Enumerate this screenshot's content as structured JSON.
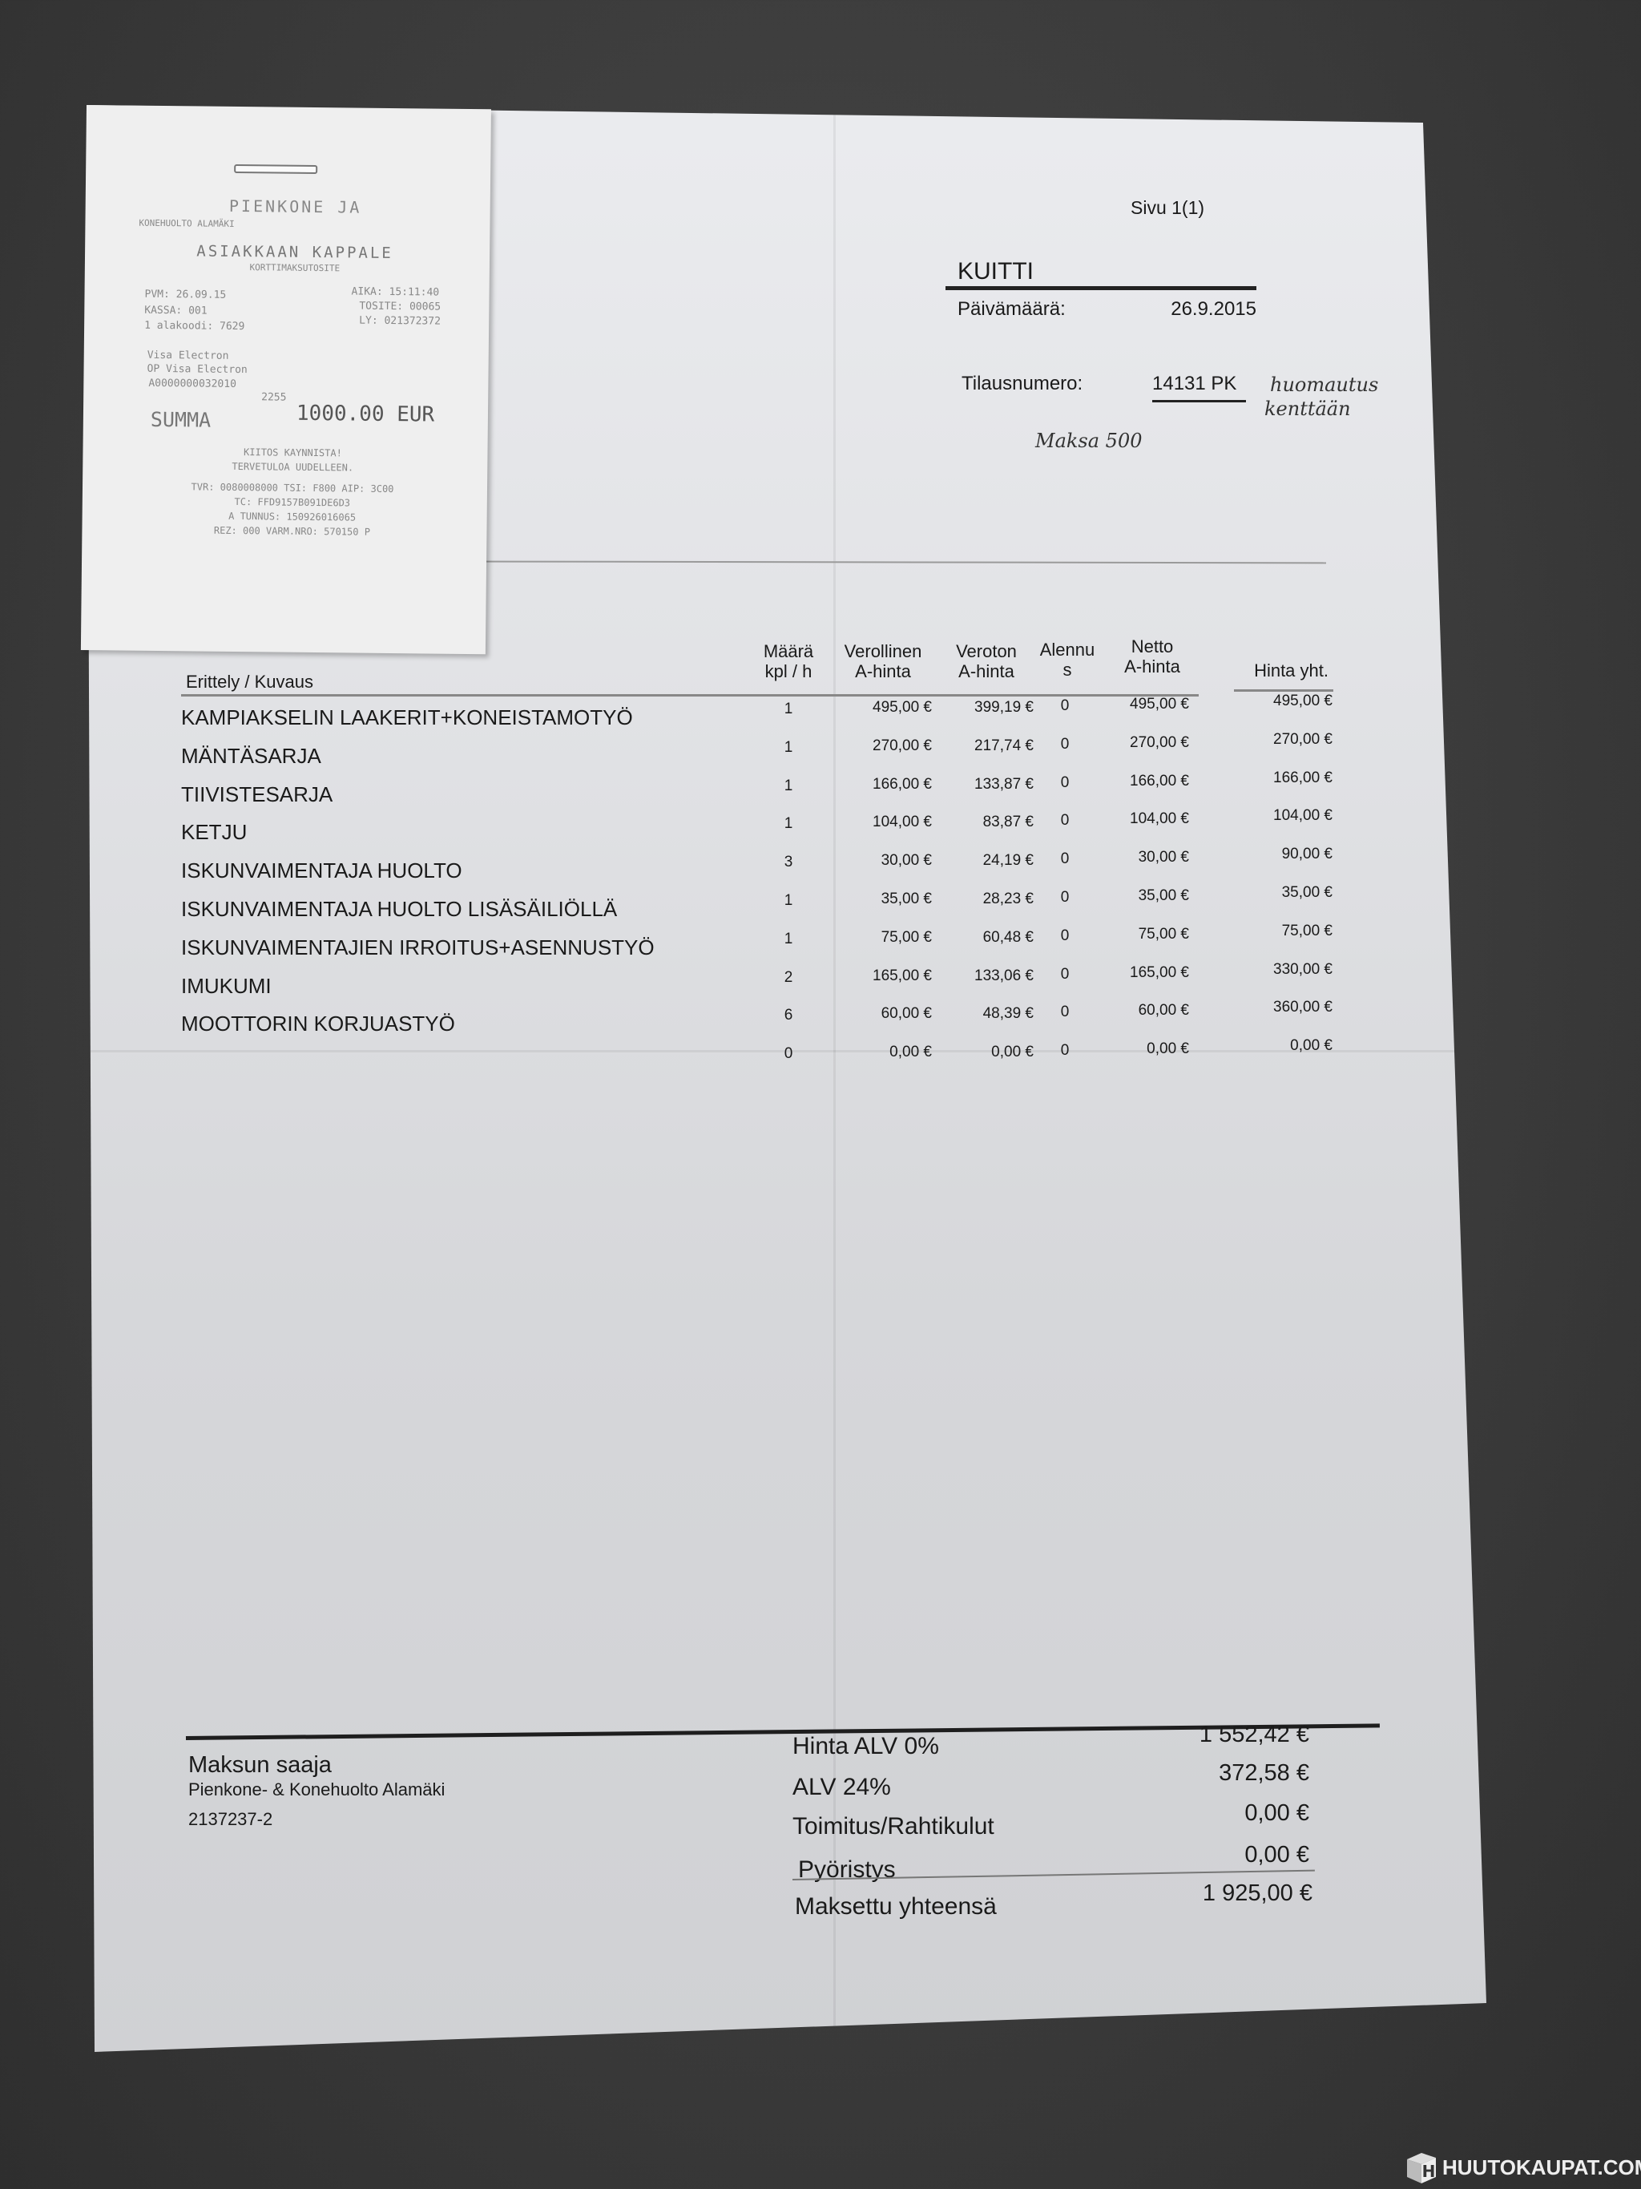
{
  "receipt": {
    "merchant_line1": "PIENKONE JA",
    "merchant_line2": "KONEHUOLTO ALAMÄKI",
    "copy_title": "ASIAKKAAN KAPPALE",
    "receipt_type": "KORTTIMAKSUTOSITE",
    "pvm": "PVM: 26.09.15",
    "kassa": "KASSA: 001",
    "alakoodi": "1 alakoodi: 7629",
    "aika": "AIKA: 15:11:40",
    "tosite": "TOSITE: 00065",
    "ly": "LY: 021372372",
    "card1": "Visa Electron",
    "card2": "OP Visa Electron",
    "aid": "A0000000032010",
    "card_last": "2255",
    "summa_label": "SUMMA",
    "summa_value": "1000.00 EUR",
    "thanks1": "KIITOS KAYNNISTA!",
    "thanks2": "TERVETULOA UUDELLEEN.",
    "tvr": "TVR: 0080008000 TSI: F800 AIP: 3C00",
    "tc": "TC: FFD9157B091DE6D3",
    "tunnus": "A TUNNUS: 150926016065",
    "rez": "REZ: 000 VARM.NRO: 570150 P"
  },
  "document": {
    "page": "Sivu 1(1)",
    "title": "KUITTI",
    "date_label": "Päivämäärä:",
    "date_value": "26.9.2015",
    "order_label": "Tilausnumero:",
    "order_value": "14131 PK",
    "handwritten_note1": "huomautus",
    "handwritten_note2": "kenttään",
    "handwritten_pay": "Maksa 500"
  },
  "table": {
    "headers": {
      "description": "Erittely / Kuvaus",
      "qty1": "Määrä",
      "qty2": "kpl / h",
      "gross1": "Verollinen",
      "gross2": "A-hinta",
      "net1": "Veroton",
      "net2": "A-hinta",
      "disc1": "Alennu",
      "disc2": "s",
      "netto1": "Netto",
      "netto2": "A-hinta",
      "total": "Hinta yht."
    },
    "rows": [
      {
        "desc": "KAMPIAKSELIN LAAKERIT+KONEISTAMOTYÖ",
        "qty": "1",
        "gross": "495,00 €",
        "net": "399,19 €",
        "disc": "0",
        "netto": "495,00 €",
        "total": "495,00 €"
      },
      {
        "desc": "MÄNTÄSARJA",
        "qty": "1",
        "gross": "270,00 €",
        "net": "217,74 €",
        "disc": "0",
        "netto": "270,00 €",
        "total": "270,00 €"
      },
      {
        "desc": "TIIVISTESARJA",
        "qty": "1",
        "gross": "166,00 €",
        "net": "133,87 €",
        "disc": "0",
        "netto": "166,00 €",
        "total": "166,00 €"
      },
      {
        "desc": "KETJU",
        "qty": "1",
        "gross": "104,00 €",
        "net": "83,87 €",
        "disc": "0",
        "netto": "104,00 €",
        "total": "104,00 €"
      },
      {
        "desc": "ISKUNVAIMENTAJA HUOLTO",
        "qty": "3",
        "gross": "30,00 €",
        "net": "24,19 €",
        "disc": "0",
        "netto": "30,00 €",
        "total": "90,00 €"
      },
      {
        "desc": "ISKUNVAIMENTAJA HUOLTO LISÄSÄILIÖLLÄ",
        "qty": "1",
        "gross": "35,00 €",
        "net": "28,23 €",
        "disc": "0",
        "netto": "35,00 €",
        "total": "35,00 €"
      },
      {
        "desc": "ISKUNVAIMENTAJIEN IRROITUS+ASENNUSTYÖ",
        "qty": "1",
        "gross": "75,00 €",
        "net": "60,48 €",
        "disc": "0",
        "netto": "75,00 €",
        "total": "75,00 €"
      },
      {
        "desc": "IMUKUMI",
        "qty": "2",
        "gross": "165,00 €",
        "net": "133,06 €",
        "disc": "0",
        "netto": "165,00 €",
        "total": "330,00 €"
      },
      {
        "desc": "MOOTTORIN KORJUASTYÖ",
        "qty": "6",
        "gross": "60,00 €",
        "net": "48,39 €",
        "disc": "0",
        "netto": "60,00 €",
        "total": "360,00 €"
      },
      {
        "desc": "",
        "qty": "0",
        "gross": "0,00 €",
        "net": "0,00 €",
        "disc": "0",
        "netto": "0,00 €",
        "total": "0,00 €"
      }
    ]
  },
  "payee": {
    "label": "Maksun saaja",
    "name": "Pienkone- & Konehuolto Alamäki",
    "business_id": "2137237-2"
  },
  "summary": {
    "vat0_label": "Hinta ALV 0%",
    "vat0_value": "1 552,42 €",
    "vat_label": "ALV 24%",
    "vat_value": "372,58 €",
    "shipping_label": "Toimitus/Rahtikulut",
    "shipping_value": "0,00 €",
    "rounding_label": "Pyöristys",
    "rounding_value": "0,00 €",
    "total_label": "Maksettu yhteensä",
    "total_value": "1 925,00 €"
  },
  "watermark": {
    "text": "HUUTOKAUPAT.COM"
  }
}
